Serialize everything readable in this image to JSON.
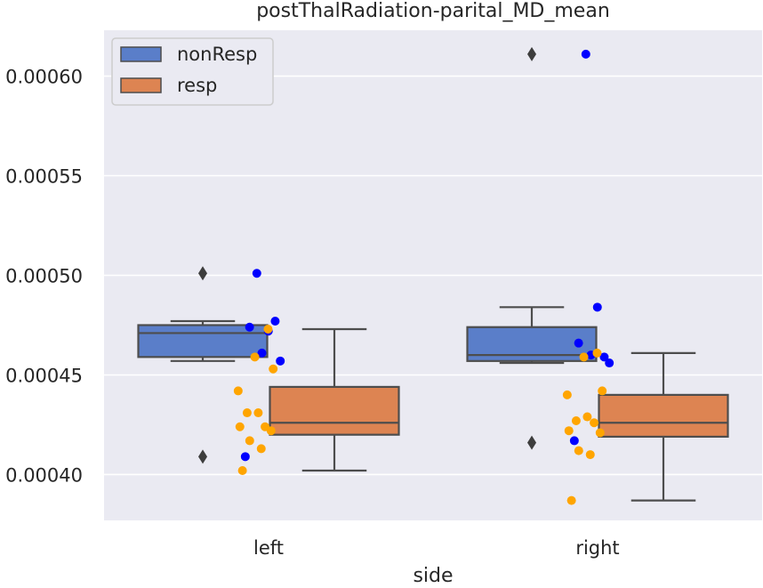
{
  "chart_data": {
    "type": "box",
    "title": "postThalRadiation-parital_MD_mean",
    "xlabel": "side",
    "ylabel": "",
    "categories": [
      "left",
      "right"
    ],
    "ylim": [
      0.000377,
      0.000623
    ],
    "yticks": [
      0.0004,
      0.00045,
      0.0005,
      0.00055,
      0.0006
    ],
    "ytick_labels": [
      "0.00040",
      "0.00045",
      "0.00050",
      "0.00055",
      "0.00060"
    ],
    "grid": true,
    "legend_position": "top-left",
    "series": [
      {
        "name": "nonResp",
        "color": "#5a7ec9",
        "point_color": "#0000ff",
        "boxes": [
          {
            "category": "left",
            "whisker_low": 0.000457,
            "q1": 0.000459,
            "median": 0.000471,
            "q3": 0.000475,
            "whisker_high": 0.000477,
            "outliers": [
              0.000501,
              0.000409
            ]
          },
          {
            "category": "right",
            "whisker_low": 0.000456,
            "q1": 0.000457,
            "median": 0.00046,
            "q3": 0.000474,
            "whisker_high": 0.000484,
            "outliers": [
              0.000611,
              0.000416
            ]
          }
        ],
        "points": [
          {
            "category": "left",
            "values": [
              0.000501,
              0.000472,
              0.000474,
              0.000477,
              0.000461,
              0.000457,
              0.000409
            ]
          },
          {
            "category": "right",
            "values": [
              0.000611,
              0.000484,
              0.000466,
              0.000459,
              0.00046,
              0.000456,
              0.000417
            ]
          }
        ]
      },
      {
        "name": "resp",
        "color": "#dd8452",
        "point_color": "#ffa500",
        "boxes": [
          {
            "category": "left",
            "whisker_low": 0.000402,
            "q1": 0.00042,
            "median": 0.000426,
            "q3": 0.000444,
            "whisker_high": 0.000473
          },
          {
            "category": "right",
            "whisker_low": 0.000387,
            "q1": 0.000419,
            "median": 0.000426,
            "q3": 0.00044,
            "whisker_high": 0.000461
          }
        ],
        "points": [
          {
            "category": "left",
            "values": [
              0.000473,
              0.000459,
              0.000453,
              0.000442,
              0.000431,
              0.000431,
              0.000424,
              0.000424,
              0.000422,
              0.000417,
              0.000413,
              0.000402
            ]
          },
          {
            "category": "right",
            "values": [
              0.000461,
              0.000459,
              0.000442,
              0.00044,
              0.000429,
              0.000427,
              0.000426,
              0.000422,
              0.000421,
              0.000412,
              0.00041,
              0.000387
            ]
          }
        ]
      }
    ]
  }
}
